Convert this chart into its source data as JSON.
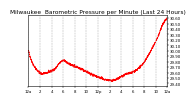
{
  "title": "Milwaukee  Barometric Pressure per Minute (Last 24 Hours)",
  "line_color": "#ff0000",
  "background_color": "#ffffff",
  "grid_color": "#888888",
  "ylim": [
    29.35,
    30.65
  ],
  "yticks": [
    29.4,
    29.5,
    29.6,
    29.7,
    29.8,
    29.9,
    30.0,
    30.1,
    30.2,
    30.3,
    30.4,
    30.5,
    30.6
  ],
  "num_points": 1440,
  "title_fontsize": 4.2,
  "tick_fontsize": 2.8,
  "line_width": 0.7,
  "time_labels": [
    "12a",
    "2",
    "4",
    "6",
    "8",
    "10",
    "12p",
    "2",
    "4",
    "6",
    "8",
    "10",
    "12a"
  ],
  "keypoints_t": [
    0.0,
    0.04,
    0.1,
    0.18,
    0.25,
    0.3,
    0.37,
    0.43,
    0.5,
    0.56,
    0.6,
    0.65,
    0.7,
    0.76,
    0.82,
    0.88,
    0.93,
    0.97,
    1.0
  ],
  "keypoints_y": [
    30.0,
    29.72,
    29.58,
    29.65,
    29.82,
    29.75,
    29.68,
    29.6,
    29.52,
    29.47,
    29.45,
    29.5,
    29.57,
    29.62,
    29.75,
    30.0,
    30.25,
    30.5,
    30.6
  ]
}
